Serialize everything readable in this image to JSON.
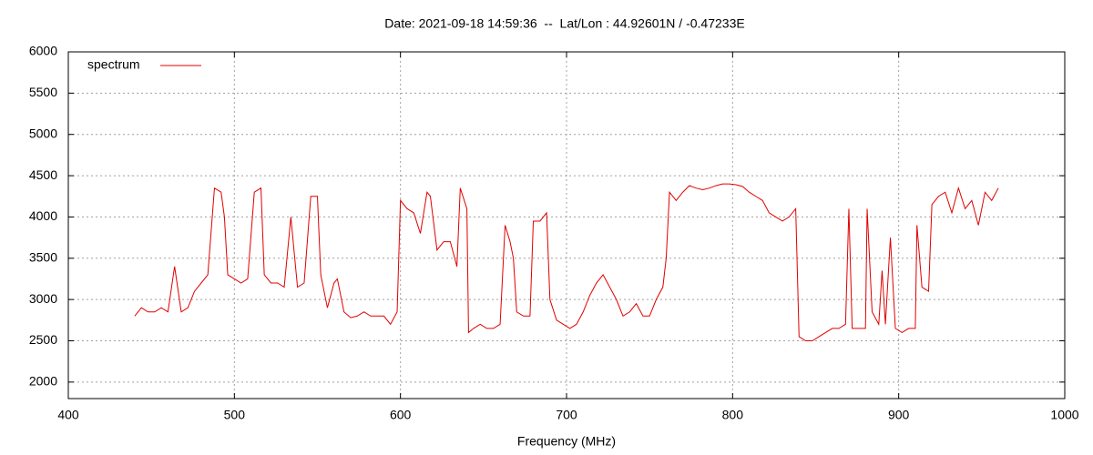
{
  "chart_data": {
    "type": "line",
    "title": "Date: 2021-09-18 14:59:36  --  Lat/Lon : 44.92601N / -0.47233E",
    "x_label": "Frequency (MHz)",
    "x": [
      440,
      444,
      448,
      452,
      456,
      460,
      464,
      468,
      472,
      476,
      480,
      484,
      488,
      492,
      494,
      496,
      500,
      504,
      508,
      512,
      516,
      518,
      522,
      526,
      530,
      534,
      538,
      542,
      546,
      550,
      552,
      556,
      560,
      562,
      566,
      570,
      574,
      578,
      582,
      586,
      590,
      594,
      598,
      600,
      604,
      608,
      612,
      616,
      618,
      622,
      626,
      630,
      634,
      636,
      640,
      641,
      644,
      648,
      652,
      656,
      660,
      663,
      666,
      668,
      670,
      674,
      678,
      680,
      684,
      688,
      690,
      694,
      698,
      702,
      706,
      710,
      714,
      718,
      722,
      726,
      730,
      734,
      738,
      742,
      746,
      750,
      754,
      758,
      760,
      762,
      766,
      770,
      774,
      778,
      782,
      786,
      790,
      794,
      798,
      802,
      806,
      810,
      814,
      818,
      822,
      826,
      830,
      834,
      838,
      840,
      844,
      848,
      852,
      856,
      860,
      864,
      868,
      870,
      872,
      876,
      880,
      881,
      884,
      888,
      890,
      892,
      895,
      898,
      902,
      906,
      910,
      911,
      914,
      918,
      920,
      924,
      928,
      932,
      936,
      940,
      944,
      948,
      952,
      956,
      960
    ],
    "series": [
      {
        "name": "spectrum",
        "color": "#e00000",
        "values": [
          2800,
          2900,
          2850,
          2850,
          2900,
          2850,
          3400,
          2850,
          2900,
          3100,
          3200,
          3300,
          4350,
          4300,
          4000,
          3300,
          3250,
          3200,
          3250,
          4300,
          4350,
          3300,
          3200,
          3200,
          3150,
          4000,
          3150,
          3200,
          4250,
          4250,
          3300,
          2900,
          3200,
          3250,
          2850,
          2780,
          2800,
          2850,
          2800,
          2800,
          2800,
          2700,
          2850,
          4200,
          4100,
          4050,
          3800,
          4300,
          4250,
          3600,
          3700,
          3700,
          3400,
          4350,
          4100,
          2600,
          2650,
          2700,
          2650,
          2650,
          2700,
          3900,
          3700,
          3500,
          2850,
          2800,
          2800,
          3950,
          3950,
          4050,
          3000,
          2750,
          2700,
          2650,
          2700,
          2850,
          3050,
          3200,
          3300,
          3150,
          3000,
          2800,
          2850,
          2950,
          2800,
          2800,
          3000,
          3150,
          3500,
          4300,
          4200,
          4300,
          4380,
          4350,
          4330,
          4350,
          4380,
          4400,
          4400,
          4390,
          4370,
          4300,
          4250,
          4200,
          4050,
          4000,
          3950,
          4000,
          4100,
          2550,
          2500,
          2500,
          2550,
          2600,
          2650,
          2650,
          2700,
          4100,
          2650,
          2650,
          2650,
          4100,
          2850,
          2700,
          3350,
          2700,
          3750,
          2650,
          2600,
          2650,
          2650,
          3900,
          3150,
          3100,
          4150,
          4250,
          4300,
          4050,
          4350,
          4100,
          4200,
          3900,
          4300,
          4200,
          4350
        ]
      }
    ],
    "xlim": [
      400,
      1000
    ],
    "xticks": [
      400,
      500,
      600,
      700,
      800,
      900,
      1000
    ],
    "ylim": [
      1800,
      6000
    ],
    "yticks": [
      2000,
      2500,
      3000,
      3500,
      4000,
      4500,
      5000,
      5500,
      6000
    ],
    "grid": true,
    "legend": "top-left"
  }
}
